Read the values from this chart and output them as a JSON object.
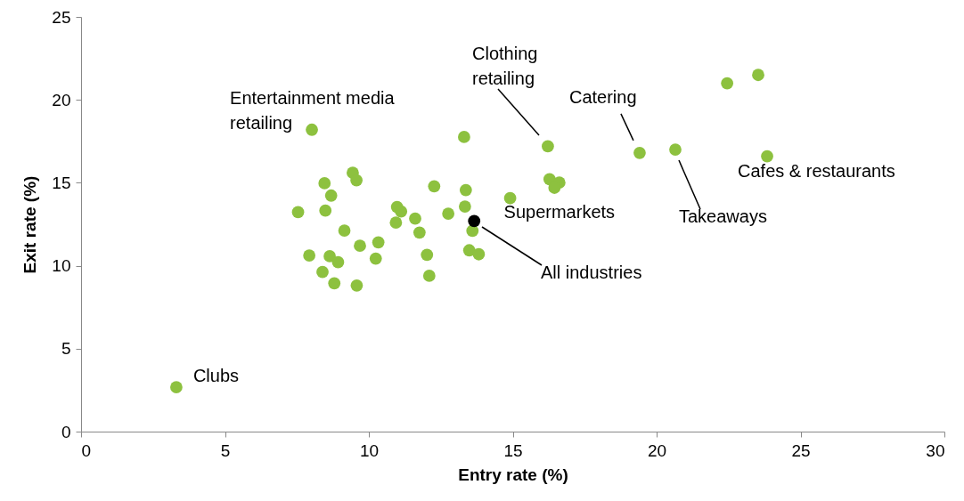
{
  "chart_data": {
    "type": "scatter",
    "xlabel": "Entry rate (%)",
    "ylabel": "Exit rate (%)",
    "xlim": [
      0,
      30
    ],
    "xticks": [
      0,
      5,
      10,
      15,
      20,
      25,
      30
    ],
    "ylim": [
      0,
      25
    ],
    "yticks": [
      0,
      5,
      10,
      15,
      20,
      25
    ],
    "marker": "circle",
    "series": [
      {
        "color": "#8dc13f",
        "x": [
          8.02,
          3.31,
          13.31,
          16.22,
          19.41,
          20.65,
          22.45,
          23.53,
          23.84,
          9.44,
          9.57,
          8.46,
          8.69,
          12.27,
          13.37,
          16.28,
          16.62,
          16.45,
          14.91,
          7.54,
          8.49,
          10.98,
          11.12,
          13.34,
          11.61,
          12.76,
          10.94,
          11.76,
          13.6,
          9.15,
          10.33,
          9.69,
          7.93,
          8.64,
          8.93,
          10.24,
          12.02,
          13.49,
          13.82,
          8.39,
          12.1,
          8.8,
          9.58
        ],
        "values": [
          18.2,
          2.68,
          17.76,
          17.2,
          16.8,
          17.0,
          21.0,
          21.5,
          16.6,
          15.6,
          15.15,
          14.97,
          14.23,
          14.79,
          14.56,
          15.21,
          15.01,
          14.7,
          14.07,
          13.23,
          13.32,
          13.54,
          13.27,
          13.57,
          12.84,
          13.14,
          12.6,
          12.0,
          12.1,
          12.12,
          11.41,
          11.2,
          10.62,
          10.57,
          10.21,
          10.43,
          10.66,
          10.93,
          10.69,
          9.62,
          9.39,
          8.94,
          8.81
        ]
      },
      {
        "color": "#000000",
        "x": [
          13.66
        ],
        "values": [
          12.7
        ]
      }
    ],
    "annotations": [
      {
        "text": "Entertainment media retailing",
        "x": 8.02,
        "y": 18.2
      },
      {
        "text": "Clubs",
        "x": 3.31,
        "y": 2.68
      },
      "Clothing retailing",
      {
        "text": "Catering",
        "x": 19.41,
        "y": 16.8
      },
      "Takeaways",
      {
        "text": "Cafes & restaurants",
        "x": 23.84,
        "y": 16.6
      },
      {
        "text": "Supermarkets",
        "x": 14.91,
        "y": 14.07
      },
      "All industries"
    ]
  }
}
